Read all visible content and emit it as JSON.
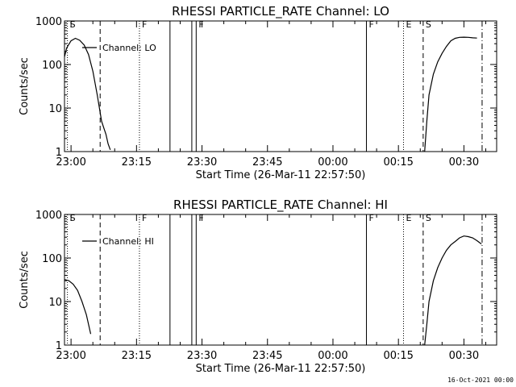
{
  "footer": {
    "date_stamp": "16-Oct-2021 00:00"
  },
  "chart_data": [
    {
      "type": "line",
      "title": "RHESSI PARTICLE_RATE Channel: LO",
      "xlabel": "Start Time (26-Mar-11 22:57:50)",
      "ylabel": "Counts/sec",
      "y_scale": "log",
      "xlim": [
        "22:58:30",
        "00:37:30"
      ],
      "ylim": [
        1,
        1000
      ],
      "x_tick_labels": [
        "23:00",
        "23:15",
        "23:30",
        "23:45",
        "00:00",
        "00:15",
        "00:30"
      ],
      "y_tick_labels": [
        "1",
        "10",
        "100",
        "1000"
      ],
      "legend": {
        "entries": [
          "Channel: LO"
        ],
        "placement": "top-left"
      },
      "series": [
        {
          "name": "Channel: LO",
          "segments": [
            [
              [
                "22:58:30",
                150
              ],
              [
                "22:59:00",
                240
              ],
              [
                "23:00:00",
                350
              ],
              [
                "23:01:00",
                400
              ],
              [
                "23:02:00",
                360
              ],
              [
                "23:03:00",
                280
              ],
              [
                "23:04:00",
                170
              ],
              [
                "23:05:00",
                70
              ],
              [
                "23:06:00",
                20
              ],
              [
                "23:06:30",
                10
              ],
              [
                "23:07:00",
                5
              ],
              [
                "23:07:30",
                3.5
              ],
              [
                "23:08:00",
                2.5
              ],
              [
                "23:08:30",
                1.5
              ],
              [
                "23:09:00",
                1.1
              ]
            ],
            [
              [
                "00:21:00",
                1
              ],
              [
                "00:21:30",
                5
              ],
              [
                "00:22:00",
                20
              ],
              [
                "00:23:00",
                60
              ],
              [
                "00:24:00",
                115
              ],
              [
                "00:25:00",
                180
              ],
              [
                "00:26:00",
                260
              ],
              [
                "00:27:00",
                350
              ],
              [
                "00:28:00",
                400
              ],
              [
                "00:29:00",
                420
              ],
              [
                "00:30:00",
                425
              ],
              [
                "00:31:00",
                420
              ],
              [
                "00:32:00",
                410
              ],
              [
                "00:33:00",
                405
              ]
            ]
          ]
        }
      ],
      "markers": [
        {
          "time": "22:59:10",
          "style": "dotted",
          "label": "S"
        },
        {
          "time": "23:06:40",
          "style": "dashed",
          "label": ""
        },
        {
          "time": "23:15:40",
          "style": "dotted",
          "label": "F"
        },
        {
          "time": "23:22:40",
          "style": "solid",
          "label": ""
        },
        {
          "time": "23:27:40",
          "style": "solid",
          "label": ""
        },
        {
          "time": "23:28:40",
          "style": "solid",
          "label": "F"
        },
        {
          "time": "00:07:40",
          "style": "solid",
          "label": "F"
        },
        {
          "time": "00:16:10",
          "style": "dotted",
          "label": "E"
        },
        {
          "time": "00:20:40",
          "style": "dashed",
          "label": "S"
        },
        {
          "time": "00:34:10",
          "style": "dashdot",
          "label": ""
        }
      ]
    },
    {
      "type": "line",
      "title": "RHESSI PARTICLE_RATE Channel: HI",
      "xlabel": "Start Time (26-Mar-11 22:57:50)",
      "ylabel": "Counts/sec",
      "y_scale": "log",
      "xlim": [
        "22:58:30",
        "00:37:30"
      ],
      "ylim": [
        1,
        1000
      ],
      "x_tick_labels": [
        "23:00",
        "23:15",
        "23:30",
        "23:45",
        "00:00",
        "00:15",
        "00:30"
      ],
      "y_tick_labels": [
        "1",
        "10",
        "100",
        "1000"
      ],
      "legend": {
        "entries": [
          "Channel: HI"
        ],
        "placement": "top-left"
      },
      "series": [
        {
          "name": "Channel: HI",
          "segments": [
            [
              [
                "22:58:30",
                32
              ],
              [
                "22:59:30",
                30
              ],
              [
                "23:00:30",
                25
              ],
              [
                "23:01:30",
                18
              ],
              [
                "23:02:30",
                10
              ],
              [
                "23:03:30",
                5
              ],
              [
                "23:04:30",
                1.8
              ]
            ],
            [
              [
                "00:21:00",
                1
              ],
              [
                "00:21:30",
                3
              ],
              [
                "00:22:00",
                10
              ],
              [
                "00:23:00",
                30
              ],
              [
                "00:24:00",
                60
              ],
              [
                "00:25:00",
                100
              ],
              [
                "00:26:00",
                150
              ],
              [
                "00:27:00",
                200
              ],
              [
                "00:28:00",
                240
              ],
              [
                "00:29:00",
                290
              ],
              [
                "00:30:00",
                320
              ],
              [
                "00:31:00",
                310
              ],
              [
                "00:32:00",
                290
              ],
              [
                "00:33:00",
                250
              ],
              [
                "00:34:00",
                210
              ]
            ]
          ]
        }
      ],
      "markers": [
        {
          "time": "22:59:10",
          "style": "dotted",
          "label": "S"
        },
        {
          "time": "23:06:40",
          "style": "dashed",
          "label": ""
        },
        {
          "time": "23:15:40",
          "style": "dotted",
          "label": "F"
        },
        {
          "time": "23:22:40",
          "style": "solid",
          "label": ""
        },
        {
          "time": "23:27:40",
          "style": "solid",
          "label": ""
        },
        {
          "time": "23:28:40",
          "style": "solid",
          "label": "F"
        },
        {
          "time": "00:07:40",
          "style": "solid",
          "label": "F"
        },
        {
          "time": "00:16:10",
          "style": "dotted",
          "label": "E"
        },
        {
          "time": "00:20:40",
          "style": "dashed",
          "label": "S"
        },
        {
          "time": "00:34:10",
          "style": "dashdot",
          "label": ""
        }
      ]
    }
  ]
}
